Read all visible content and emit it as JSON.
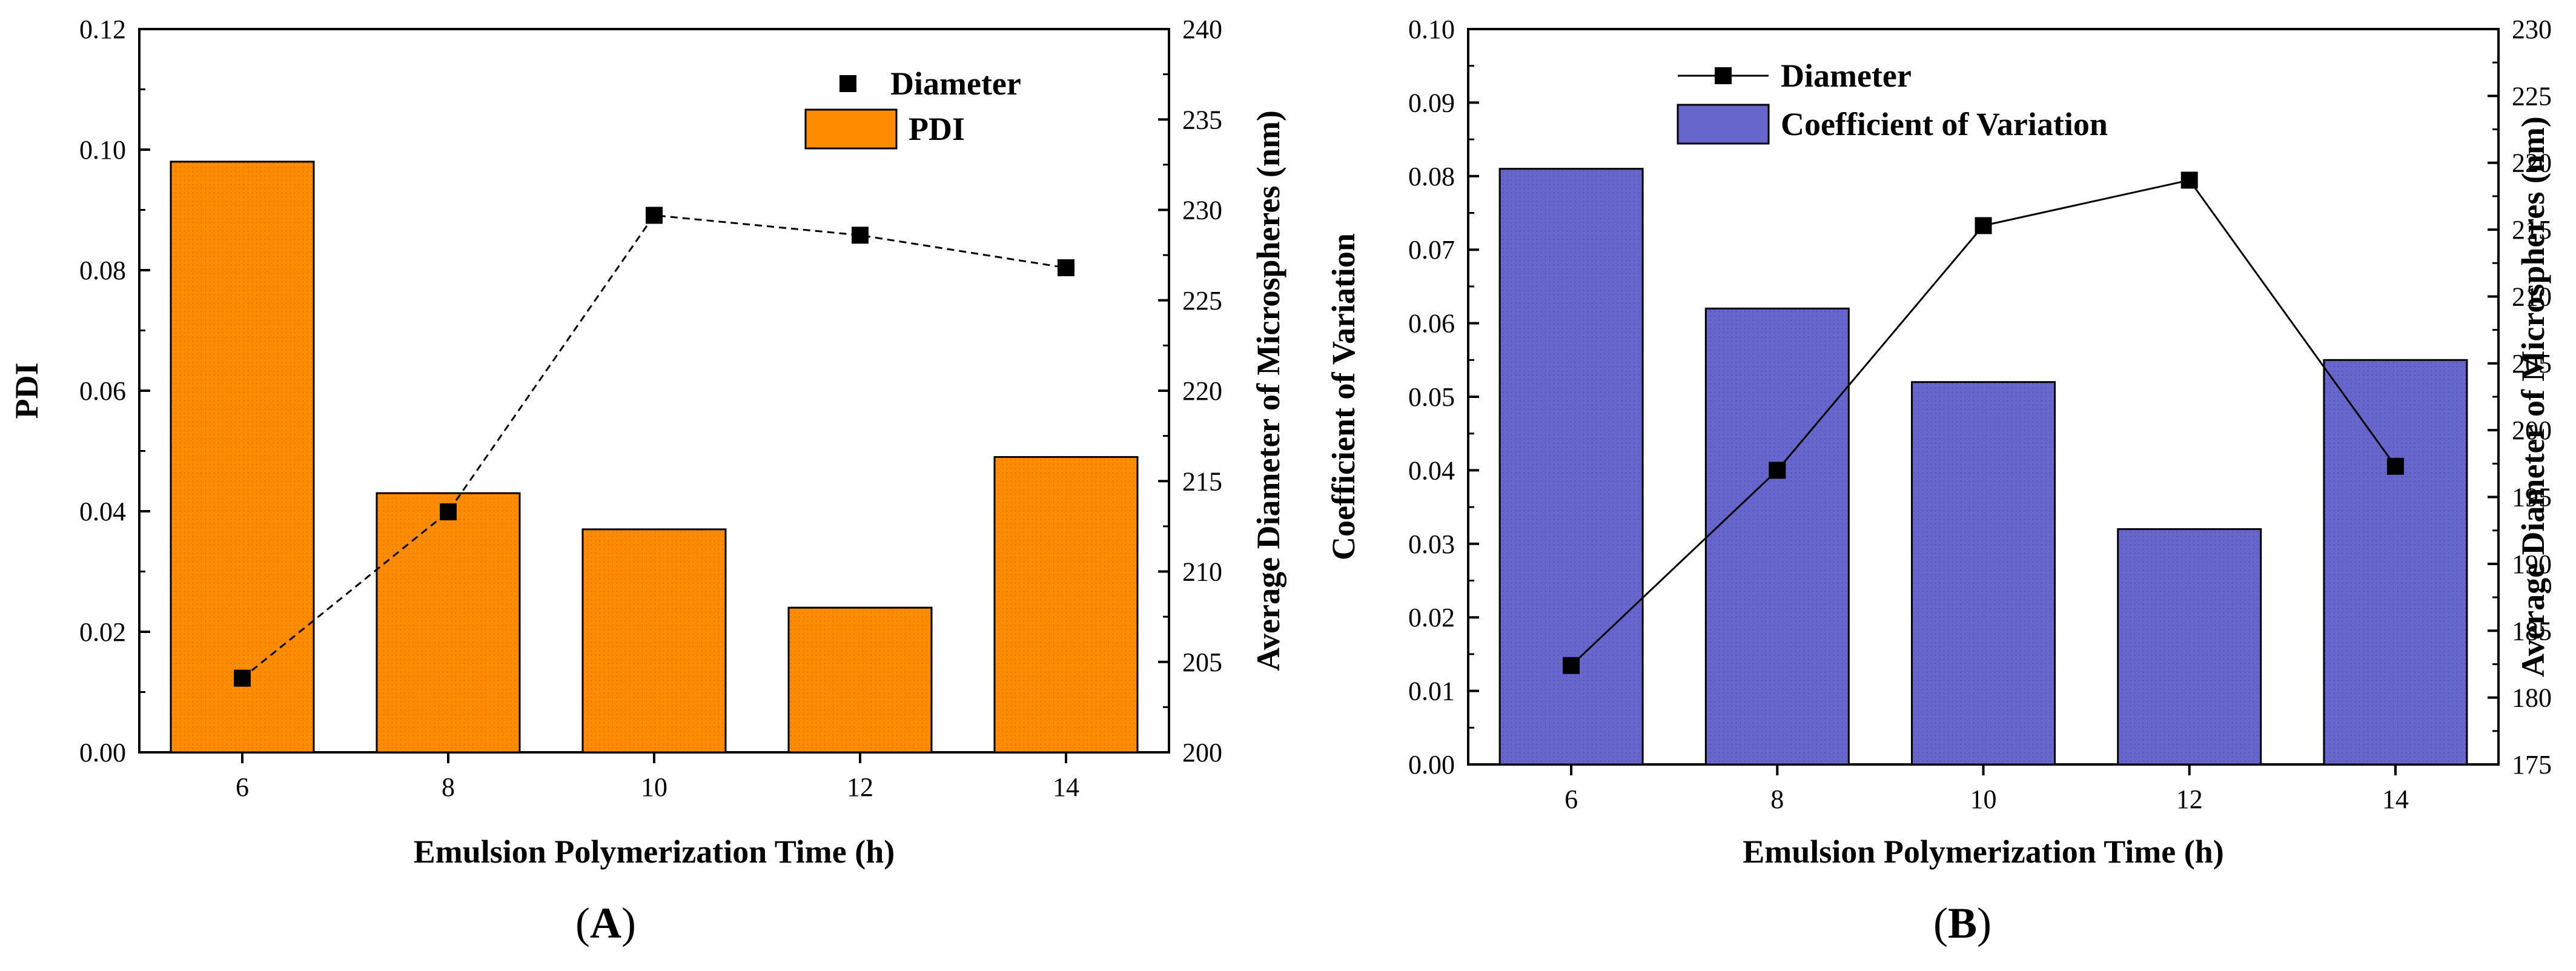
{
  "chart_data": [
    {
      "type": "bar+line",
      "panel_label": {
        "open": "(",
        "letter": "A",
        "close": ")"
      },
      "xlabel": "Emulsion Polymerization Time (h)",
      "ylabel_left": "PDI",
      "ylabel_right": "Average Diameter of Microspheres (nm)",
      "categories": [
        "6",
        "8",
        "10",
        "12",
        "14"
      ],
      "ylim_left": [
        0,
        0.12
      ],
      "yticks_left": [
        "0.00",
        "0.02",
        "0.04",
        "0.06",
        "0.08",
        "0.10",
        "0.12"
      ],
      "ylim_right": [
        200,
        240
      ],
      "yticks_right": [
        "200",
        "205",
        "210",
        "215",
        "220",
        "225",
        "230",
        "235",
        "240"
      ],
      "legend_position": "top-right",
      "series": [
        {
          "name": "PDI",
          "kind": "bar",
          "axis": "left",
          "color": "#FF8C00",
          "values": [
            0.098,
            0.043,
            0.037,
            0.024,
            0.049
          ]
        },
        {
          "name": "Diameter",
          "kind": "line",
          "axis": "right",
          "line_style": "dashed",
          "values": [
            204.1,
            213.3,
            229.7,
            228.6,
            226.8
          ]
        }
      ]
    },
    {
      "type": "bar+line",
      "panel_label": {
        "open": "(",
        "letter": "B",
        "close": ")"
      },
      "xlabel": "Emulsion Polymerization Time (h)",
      "ylabel_left": "Coefficient of Variation",
      "ylabel_right": "Average Diameter of Microspheres (nm)",
      "categories": [
        "6",
        "8",
        "10",
        "12",
        "14"
      ],
      "ylim_left": [
        0,
        0.1
      ],
      "yticks_left": [
        "0.00",
        "0.01",
        "0.02",
        "0.03",
        "0.04",
        "0.05",
        "0.06",
        "0.07",
        "0.08",
        "0.09",
        "0.10"
      ],
      "ylim_right": [
        175,
        230
      ],
      "yticks_right": [
        "175",
        "180",
        "185",
        "190",
        "195",
        "200",
        "205",
        "210",
        "215",
        "220",
        "225",
        "230"
      ],
      "legend_position": "top-left",
      "series": [
        {
          "name": "Diameter",
          "kind": "line",
          "axis": "right",
          "line_style": "solid",
          "values": [
            182.4,
            197.0,
            215.3,
            218.7,
            197.3
          ]
        },
        {
          "name": "Coefficient of Variation",
          "kind": "bar",
          "axis": "left",
          "color": "#6666CC",
          "values": [
            0.081,
            0.062,
            0.052,
            0.032,
            0.055
          ]
        }
      ]
    }
  ]
}
